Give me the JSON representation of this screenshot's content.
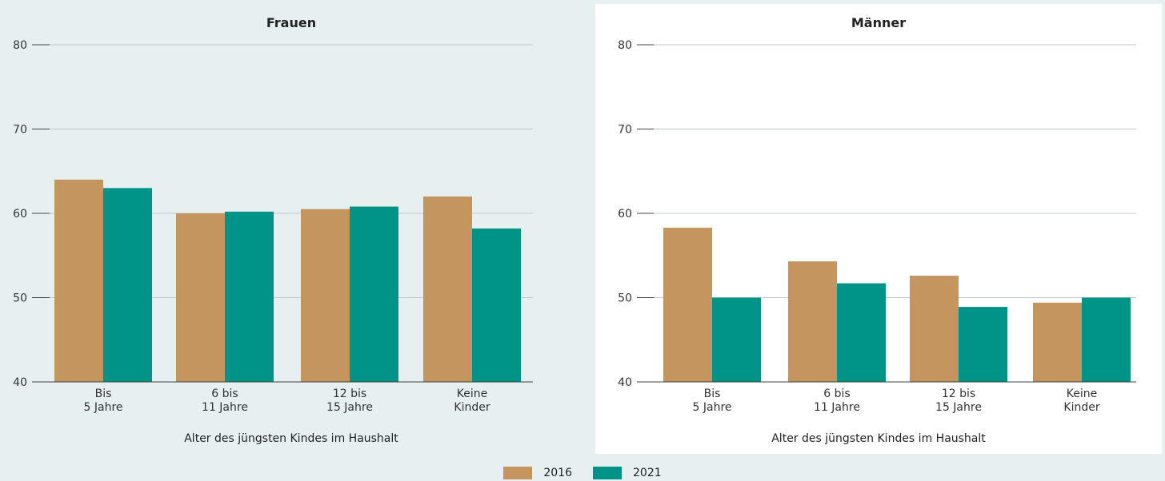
{
  "colors": {
    "s2016": "#c4955f",
    "s2021": "#009387",
    "grid": "#bfc9c9",
    "axis": "#444444"
  },
  "legend": [
    {
      "label": "2016",
      "color": "#c4955f"
    },
    {
      "label": "2021",
      "color": "#009387"
    }
  ],
  "chart_data": [
    {
      "type": "bar",
      "title": "Frauen",
      "xlabel": "Alter des jüngsten Kindes im Haushalt",
      "ylabel": "",
      "ylim": [
        40,
        80
      ],
      "yticks": [
        40,
        50,
        60,
        70,
        80
      ],
      "grid": true,
      "categories": [
        "Bis\n5 Jahre",
        "6 bis\n11 Jahre",
        "12 bis\n15 Jahre",
        "Keine\nKinder"
      ],
      "series": [
        {
          "name": "2016",
          "values": [
            64.0,
            60.0,
            60.5,
            62.0
          ]
        },
        {
          "name": "2021",
          "values": [
            63.0,
            60.2,
            60.8,
            58.2
          ]
        }
      ]
    },
    {
      "type": "bar",
      "title": "Männer",
      "xlabel": "Alter des jüngsten Kindes im Haushalt",
      "ylabel": "",
      "ylim": [
        40,
        80
      ],
      "yticks": [
        40,
        50,
        60,
        70,
        80
      ],
      "grid": true,
      "categories": [
        "Bis\n5 Jahre",
        "6 bis\n11 Jahre",
        "12 bis\n15 Jahre",
        "Keine\nKinder"
      ],
      "series": [
        {
          "name": "2016",
          "values": [
            58.3,
            54.3,
            52.6,
            49.4
          ]
        },
        {
          "name": "2021",
          "values": [
            50.0,
            51.7,
            48.9,
            50.0
          ]
        }
      ]
    }
  ]
}
